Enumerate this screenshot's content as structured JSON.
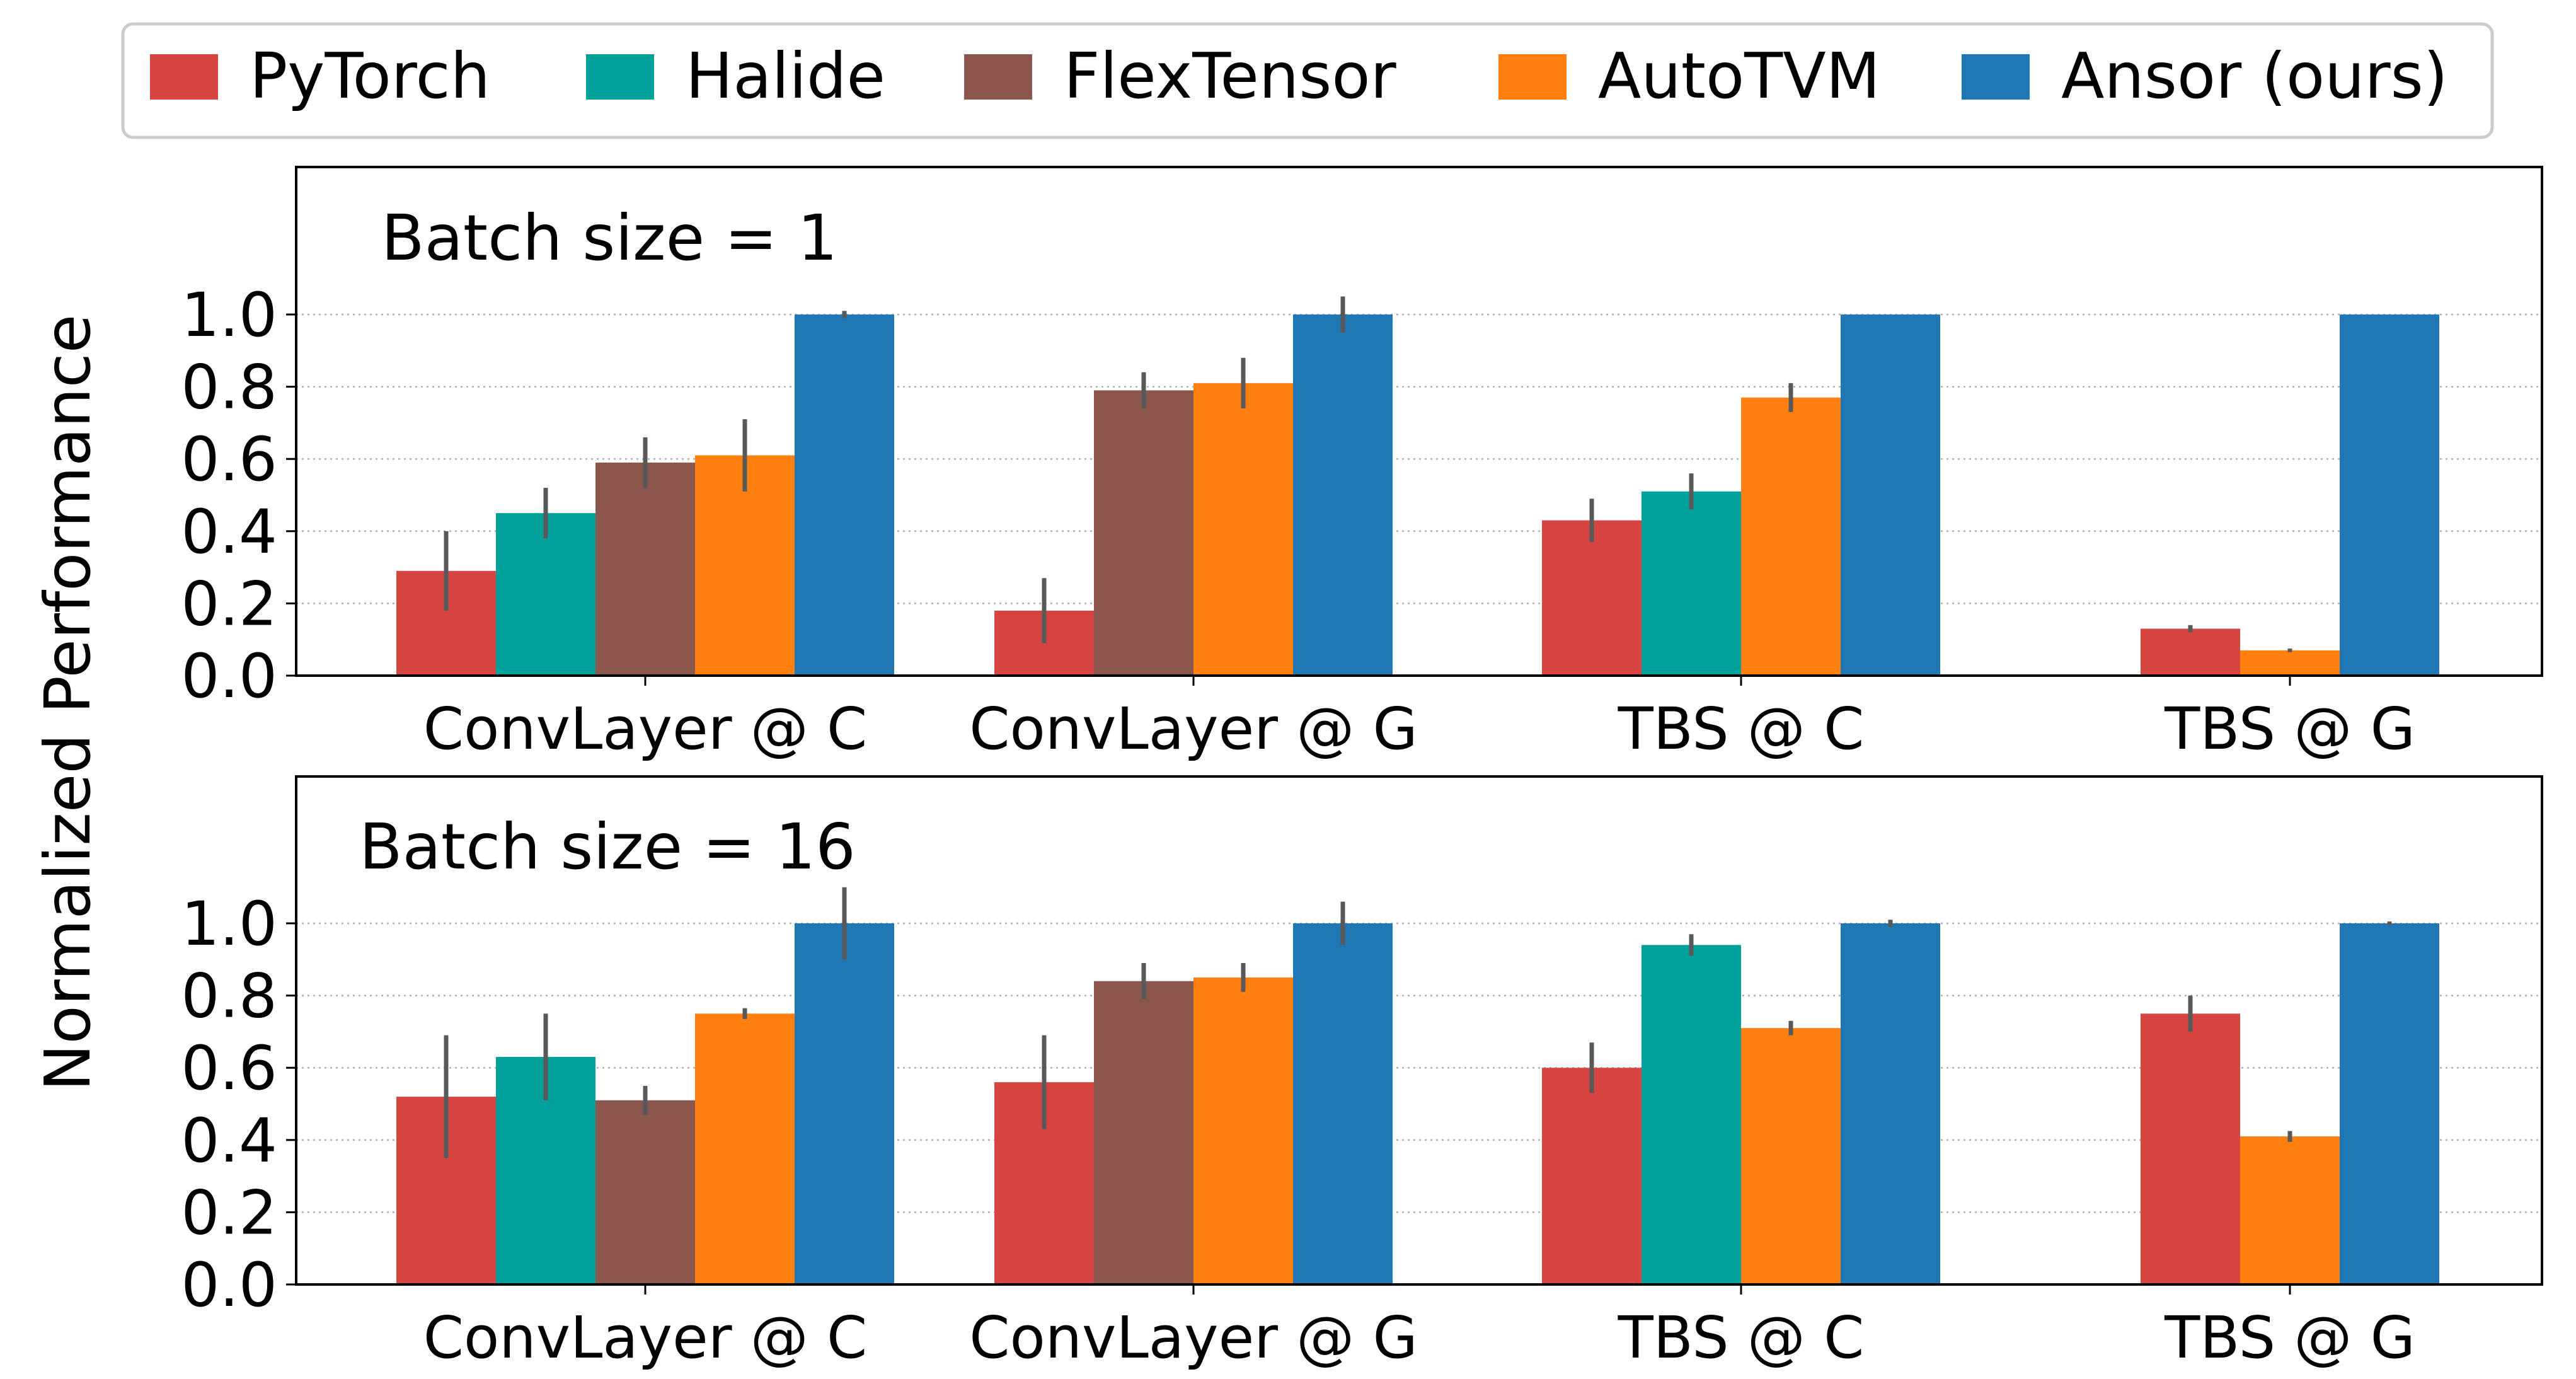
{
  "chart_data": {
    "type": "bar",
    "ylabel": "Normalized Performance",
    "ylim": [
      0,
      1.0
    ],
    "yticks": [
      "0.0",
      "0.2",
      "0.4",
      "0.6",
      "0.8",
      "1.0"
    ],
    "grid": "horizontal dotted",
    "legend_position": "top",
    "categories": [
      "ConvLayer @ C",
      "ConvLayer @ G",
      "TBS @ C",
      "TBS @ G"
    ],
    "series_meta": [
      {
        "name": "PyTorch",
        "color": "#d64541"
      },
      {
        "name": "Halide",
        "color": "#00a19a"
      },
      {
        "name": "FlexTensor",
        "color": "#8b564b"
      },
      {
        "name": "AutoTVM",
        "color": "#ff7f0f"
      },
      {
        "name": "Ansor (ours)",
        "color": "#1f77b4"
      }
    ],
    "panels": [
      {
        "title": "Batch size = 1",
        "series": [
          {
            "name": "PyTorch",
            "values": [
              0.29,
              0.18,
              0.43,
              0.13
            ],
            "errors": [
              0.11,
              0.09,
              0.06,
              0.01
            ]
          },
          {
            "name": "Halide",
            "values": [
              0.45,
              null,
              0.51,
              null
            ],
            "errors": [
              0.07,
              null,
              0.05,
              null
            ]
          },
          {
            "name": "FlexTensor",
            "values": [
              0.59,
              0.79,
              null,
              null
            ],
            "errors": [
              0.07,
              0.05,
              null,
              null
            ]
          },
          {
            "name": "AutoTVM",
            "values": [
              0.61,
              0.81,
              0.77,
              0.07
            ],
            "errors": [
              0.1,
              0.07,
              0.04,
              0.005
            ]
          },
          {
            "name": "Ansor (ours)",
            "values": [
              1.0,
              1.0,
              1.0,
              1.0
            ],
            "errors": [
              0.01,
              0.05,
              0.0,
              0.0
            ]
          }
        ]
      },
      {
        "title": "Batch size = 16",
        "series": [
          {
            "name": "PyTorch",
            "values": [
              0.52,
              0.56,
              0.6,
              0.75
            ],
            "errors": [
              0.17,
              0.13,
              0.07,
              0.05
            ]
          },
          {
            "name": "Halide",
            "values": [
              0.63,
              null,
              0.94,
              null
            ],
            "errors": [
              0.12,
              null,
              0.03,
              null
            ]
          },
          {
            "name": "FlexTensor",
            "values": [
              0.51,
              0.84,
              null,
              null
            ],
            "errors": [
              0.04,
              0.05,
              null,
              null
            ]
          },
          {
            "name": "AutoTVM",
            "values": [
              0.75,
              0.85,
              0.71,
              0.41
            ],
            "errors": [
              0.015,
              0.04,
              0.02,
              0.015
            ]
          },
          {
            "name": "Ansor (ours)",
            "values": [
              1.0,
              1.0,
              1.0,
              1.0
            ],
            "errors": [
              0.1,
              0.06,
              0.01,
              0.005
            ]
          }
        ]
      }
    ]
  }
}
